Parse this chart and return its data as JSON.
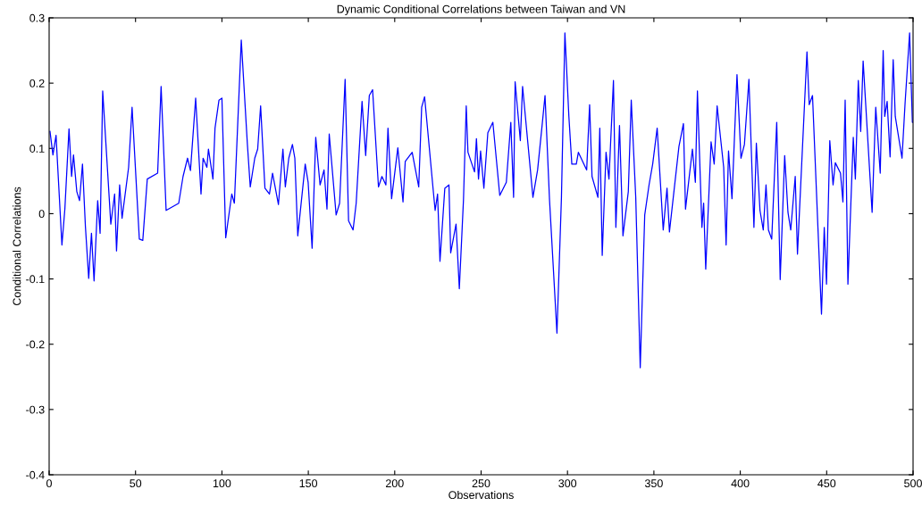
{
  "chart_data": {
    "type": "line",
    "title": "Dynamic Conditional Correlations between Taiwan and VN",
    "xlabel": "Observations",
    "ylabel": "Conditional Correlations",
    "xlim": [
      0,
      500
    ],
    "xticks": [
      0,
      50,
      100,
      150,
      200,
      250,
      300,
      350,
      400,
      450,
      500
    ],
    "ylim": [
      -0.4,
      0.3
    ],
    "yticks": [
      -0.4,
      -0.3,
      -0.2,
      -0.1,
      0,
      0.1,
      0.2,
      0.3
    ],
    "grid": false,
    "marker": "none",
    "line_style": "solid",
    "series": [
      {
        "color": "#0000ff",
        "x": [
          0.5,
          2.2,
          4,
          5,
          7.4,
          9.1,
          11.5,
          13,
          14.1,
          16,
          17.6,
          19.3,
          21,
          22.9,
          24.5,
          26,
          28.1,
          29.5,
          31,
          35.7,
          37.9,
          39,
          40.8,
          42.2,
          46,
          48,
          52.2,
          54.2,
          56.8,
          62.8,
          64.8,
          67.7,
          75,
          77.5,
          80.1,
          81.8,
          84.8,
          87.9,
          89.1,
          91.3,
          92.2,
          94.8,
          96,
          98.3,
          100,
          102.2,
          105.7,
          107.2,
          111.2,
          114.7,
          116.4,
          119,
          120.7,
          122.4,
          124.9,
          127.5,
          129.3,
          132.7,
          135.3,
          136.7,
          138.7,
          140.8,
          142.2,
          143.9,
          148.2,
          149.9,
          152.2,
          154.3,
          156.8,
          159.1,
          160.8,
          162.1,
          166.1,
          168.1,
          171.3,
          173.3,
          175.9,
          177.7,
          181.1,
          183.2,
          185.3,
          187.2,
          190.6,
          192.6,
          194.9,
          196.1,
          198.2,
          201.8,
          204.8,
          206.1,
          210.1,
          213.9,
          215.6,
          217.3,
          222.5,
          223.4,
          224.8,
          226.2,
          229,
          231.4,
          232.4,
          235.5,
          237.4,
          239.8,
          241.4,
          242.4,
          246.2,
          247.3,
          248.5,
          249.7,
          251.6,
          253.9,
          256.8,
          260.8,
          264.6,
          267.2,
          268.8,
          269.7,
          272.7,
          274,
          280,
          282.7,
          285.3,
          287,
          289.6,
          293.9,
          296.5,
          298.5,
          300.8,
          302.5,
          305.1,
          306.3,
          311.1,
          312.8,
          314.2,
          317.6,
          318.7,
          320.1,
          322.3,
          324,
          326.6,
          328,
          330.1,
          332.1,
          335.2,
          336.9,
          339.5,
          342.1,
          344.7,
          347.2,
          349.3,
          351.9,
          355.4,
          357.6,
          359,
          364.5,
          367.1,
          368.3,
          372.3,
          374,
          375.2,
          377.8,
          378.8,
          380,
          383.1,
          384.9,
          386.6,
          390.4,
          391.8,
          393.2,
          395.2,
          398.1,
          400.4,
          402.4,
          405,
          407.9,
          409.3,
          411.4,
          413.3,
          414.9,
          416.3,
          418.2,
          421.1,
          423.1,
          425.7,
          427.6,
          429.2,
          431.8,
          433.1,
          438.6,
          439.9,
          441.8,
          447,
          448.6,
          449.9,
          451.8,
          453.7,
          455,
          458,
          459.4,
          460.7,
          462.3,
          465.4,
          466.6,
          468.3,
          469.7,
          471.1,
          476.3,
          478.4,
          481,
          482.7,
          483.6,
          485,
          486.7,
          488.5,
          489.7,
          493.6,
          495.4,
          498,
          499.6,
          500
        ],
        "values": [
          0.126,
          0.09,
          0.12,
          0.07,
          -0.048,
          0.007,
          0.13,
          0.057,
          0.09,
          0.034,
          0.02,
          0.076,
          -0.02,
          -0.099,
          -0.03,
          -0.103,
          0.02,
          -0.03,
          0.188,
          -0.016,
          0.03,
          -0.057,
          0.044,
          -0.007,
          0.071,
          0.163,
          -0.039,
          -0.041,
          0.053,
          0.062,
          0.195,
          0.005,
          0.016,
          0.057,
          0.085,
          0.066,
          0.177,
          0.03,
          0.085,
          0.071,
          0.099,
          0.053,
          0.131,
          0.174,
          0.177,
          -0.037,
          0.03,
          0.016,
          0.266,
          0.108,
          0.041,
          0.085,
          0.099,
          0.165,
          0.039,
          0.03,
          0.062,
          0.014,
          0.099,
          0.041,
          0.085,
          0.106,
          0.085,
          -0.034,
          0.076,
          0.048,
          -0.053,
          0.117,
          0.044,
          0.067,
          0.007,
          0.122,
          -0.002,
          0.016,
          0.206,
          -0.011,
          -0.025,
          0.016,
          0.172,
          0.089,
          0.181,
          0.19,
          0.041,
          0.057,
          0.044,
          0.131,
          0.023,
          0.101,
          0.018,
          0.08,
          0.094,
          0.041,
          0.163,
          0.179,
          0.03,
          0.005,
          0.03,
          -0.073,
          0.039,
          0.044,
          -0.06,
          -0.016,
          -0.115,
          0.021,
          0.165,
          0.094,
          0.064,
          0.115,
          0.053,
          0.096,
          0.039,
          0.124,
          0.14,
          0.028,
          0.048,
          0.14,
          0.025,
          0.202,
          0.112,
          0.195,
          0.025,
          0.067,
          0.135,
          0.181,
          0.021,
          -0.183,
          0.025,
          0.277,
          0.149,
          0.076,
          0.076,
          0.094,
          0.067,
          0.167,
          0.057,
          0.025,
          0.131,
          -0.064,
          0.094,
          0.053,
          0.204,
          -0.021,
          0.135,
          -0.034,
          0.034,
          0.174,
          0.025,
          -0.236,
          -0.002,
          0.044,
          0.076,
          0.131,
          -0.025,
          0.039,
          -0.028,
          0.103,
          0.138,
          0.007,
          0.099,
          0.048,
          0.188,
          -0.021,
          0.016,
          -0.085,
          0.11,
          0.076,
          0.165,
          0.071,
          -0.048,
          0.096,
          0.023,
          0.213,
          0.085,
          0.106,
          0.206,
          -0.021,
          0.108,
          0.005,
          -0.025,
          0.044,
          -0.025,
          -0.039,
          0.14,
          -0.101,
          0.089,
          0.002,
          -0.025,
          0.057,
          -0.062,
          0.248,
          0.167,
          0.181,
          -0.154,
          -0.021,
          -0.108,
          0.112,
          0.044,
          0.078,
          0.062,
          0.018,
          0.174,
          -0.108,
          0.117,
          0.053,
          0.204,
          0.126,
          0.234,
          0.002,
          0.163,
          0.062,
          0.25,
          0.149,
          0.172,
          0.087,
          0.236,
          0.149,
          0.085,
          0.17,
          0.277,
          0.14,
          0.14
        ]
      }
    ]
  }
}
